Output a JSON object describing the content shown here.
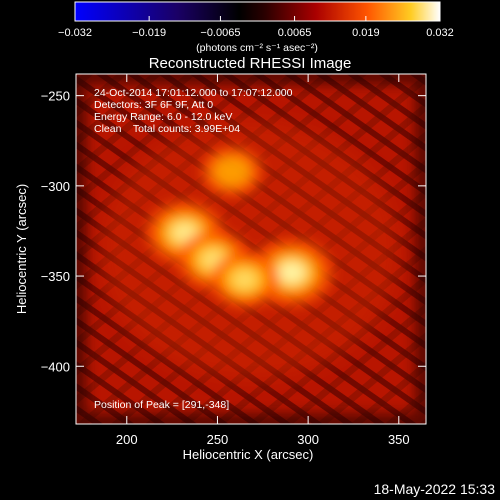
{
  "chart_data": {
    "type": "heatmap",
    "title": "Reconstructed RHESSI Image",
    "xlabel": "Heliocentric X (arcsec)",
    "ylabel": "Heliocentric Y (arcsec)",
    "xlim": [
      172,
      365
    ],
    "ylim": [
      -432,
      -238
    ],
    "x_ticks": [
      200,
      250,
      300,
      350
    ],
    "x_tick_labels": [
      "200",
      "250",
      "300",
      "350"
    ],
    "y_ticks": [
      -250,
      -300,
      -350,
      -400
    ],
    "y_tick_labels": [
      "−250",
      "−300",
      "−350",
      "−400"
    ],
    "colorbar": {
      "range": [
        -0.032,
        0.032
      ],
      "ticks": [
        -0.032,
        -0.019,
        -0.0065,
        0.0065,
        0.019,
        0.032
      ],
      "tick_labels": [
        "−0.032",
        "−0.019",
        "−0.0065",
        "0.0065",
        "0.019",
        "0.032"
      ],
      "label": "(photons cm⁻² s⁻¹ asec⁻²)"
    },
    "sources": [
      {
        "x": 291,
        "y": -348,
        "intensity": 1.0
      },
      {
        "x": 232,
        "y": -326,
        "intensity": 0.85
      },
      {
        "x": 248,
        "y": -341,
        "intensity": 0.7
      },
      {
        "x": 265,
        "y": -352,
        "intensity": 0.6
      },
      {
        "x": 258,
        "y": -292,
        "intensity": 0.35
      }
    ],
    "annotations": [
      "24-Oct-2014 17:01:12.000 to 17:07:12.000",
      "Detectors: 3F 6F 9F, Att 0",
      "Energy Range: 6.0 - 12.0 keV",
      "Clean    Total counts: 3.99E+04"
    ],
    "peak_label": "Position of Peak = [291,-348]"
  },
  "footer": {
    "date": "18-May-2022 15:33"
  }
}
